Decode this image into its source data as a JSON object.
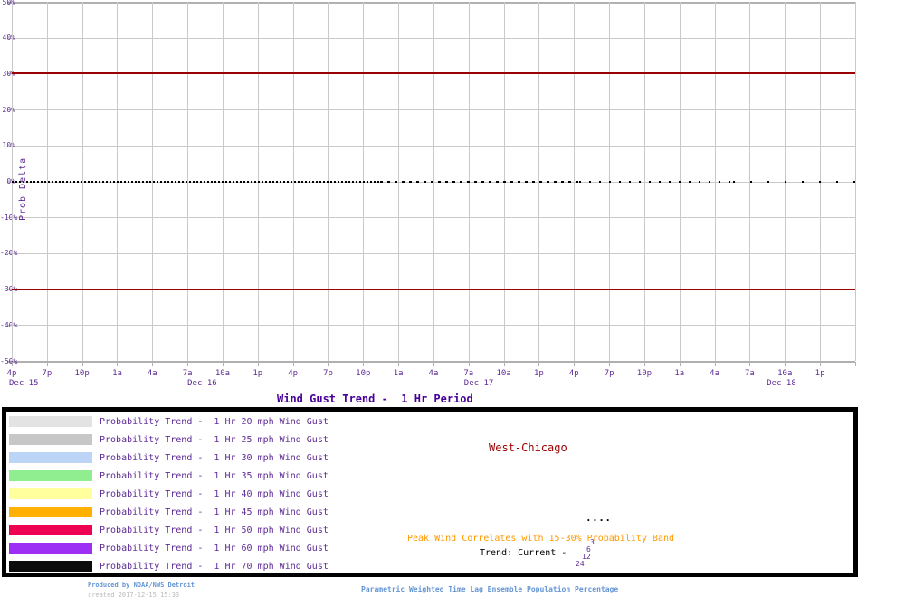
{
  "title": "Wind Gust Trend -  1 Hr Period",
  "station": "West-Chicago",
  "y_axis_label": "Prob Delta",
  "annotations": {
    "dots": "....",
    "peak": "Peak Wind Correlates with 15-30% Probability Band",
    "trend": "Trend: Current - ",
    "hours": [
      "3",
      "6",
      "12",
      "24"
    ]
  },
  "footer": {
    "produced": "Produced by NOAA/NWS Detroit",
    "created": "created 2017-12-15 15:33",
    "method": "Parametric Weighted Time Lag Ensemble Population Percentage"
  },
  "colors": {
    "background": "#ffffff",
    "grid": "#c9c9c9",
    "axis": "#b0b0b0",
    "reference_red": "#990000",
    "zero_black": "#000000",
    "axis_text": "#5e2b97",
    "title_text": "#470099",
    "legend_text": "#5e2b97",
    "station_text": "#990000",
    "peak_text": "#ff9900",
    "trend_text": "#000000",
    "hours_text": "#5e2b97",
    "footer_blue": "#6495d6",
    "footer_gray": "#b9b9b9",
    "legend_border": "#000000"
  },
  "legend": {
    "items": [
      {
        "label": "Probability Trend -  1 Hr 20 mph Wind Gust",
        "color": "#e3e3e3"
      },
      {
        "label": "Probability Trend -  1 Hr 25 mph Wind Gust",
        "color": "#c7c7c7"
      },
      {
        "label": "Probability Trend -  1 Hr 30 mph Wind Gust",
        "color": "#bcd4f6"
      },
      {
        "label": "Probability Trend -  1 Hr 35 mph Wind Gust",
        "color": "#90ee90"
      },
      {
        "label": "Probability Trend -  1 Hr 40 mph Wind Gust",
        "color": "#ffff9e"
      },
      {
        "label": "Probability Trend -  1 Hr 45 mph Wind Gust",
        "color": "#ffb000"
      },
      {
        "label": "Probability Trend -  1 Hr 50 mph Wind Gust",
        "color": "#ee0053"
      },
      {
        "label": "Probability Trend -  1 Hr 60 mph Wind Gust",
        "color": "#9c2ff3"
      },
      {
        "label": "Probability Trend -  1 Hr 70 mph Wind Gust",
        "color": "#0c0c0c"
      }
    ]
  },
  "chart_data": {
    "type": "line",
    "title": "Wind Gust Trend -  1 Hr Period",
    "xlabel": "",
    "ylabel": "Prob Delta",
    "ylim": [
      -50,
      50
    ],
    "grid": true,
    "legend_position": "bottom",
    "y_tick_labels": [
      "50%",
      "40%",
      "30%",
      "20%",
      "10%",
      "0%",
      "-10%",
      "-20%",
      "-30%",
      "-40%",
      "-50%"
    ],
    "x_tick_labels": [
      "4p",
      "7p",
      "10p",
      "1a",
      "4a",
      "7a",
      "10a",
      "1p",
      "4p",
      "7p",
      "10p",
      "1a",
      "4a",
      "7a",
      "10a",
      "1p",
      "4p",
      "7p",
      "10p",
      "1a",
      "4a",
      "7a",
      "10a",
      "1p"
    ],
    "x_date_labels": [
      {
        "label": "Dec 15",
        "tick": 0
      },
      {
        "label": "Dec 16",
        "tick": 5
      },
      {
        "label": "Dec 17",
        "tick": 13
      },
      {
        "label": "Dec 18",
        "tick": 22
      }
    ],
    "reference_lines": [
      {
        "y": 30,
        "style": "solid",
        "color": "#990000"
      },
      {
        "y": -30,
        "style": "solid",
        "color": "#990000"
      },
      {
        "y": 0,
        "style": "dotted",
        "color": "#000000"
      }
    ],
    "series": [
      {
        "name": "Probability Trend -  1 Hr 20 mph Wind Gust",
        "color": "#e3e3e3",
        "constant_value": 0
      },
      {
        "name": "Probability Trend -  1 Hr 25 mph Wind Gust",
        "color": "#c7c7c7",
        "constant_value": 0
      },
      {
        "name": "Probability Trend -  1 Hr 30 mph Wind Gust",
        "color": "#bcd4f6",
        "constant_value": 0
      },
      {
        "name": "Probability Trend -  1 Hr 35 mph Wind Gust",
        "color": "#90ee90",
        "constant_value": 0
      },
      {
        "name": "Probability Trend -  1 Hr 40 mph Wind Gust",
        "color": "#ffff9e",
        "constant_value": 0
      },
      {
        "name": "Probability Trend -  1 Hr 45 mph Wind Gust",
        "color": "#ffb000",
        "constant_value": 0
      },
      {
        "name": "Probability Trend -  1 Hr 50 mph Wind Gust",
        "color": "#ee0053",
        "constant_value": 0
      },
      {
        "name": "Probability Trend -  1 Hr 60 mph Wind Gust",
        "color": "#9c2ff3",
        "constant_value": 0
      },
      {
        "name": "Probability Trend -  1 Hr 70 mph Wind Gust",
        "color": "#0c0c0c",
        "constant_value": 0
      }
    ]
  }
}
